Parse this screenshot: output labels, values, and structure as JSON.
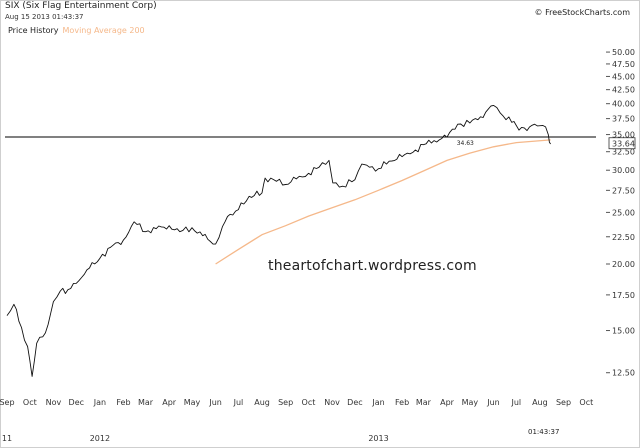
{
  "header": {
    "title": "SIX (Six Flag Entertainment Corp)",
    "timestamp": "Aug 15 2013 01:43:37",
    "copyright": "© FreeStockCharts.com",
    "bottom_time": "01:43:37"
  },
  "legend": {
    "price_label": "Price History",
    "ma_label": "Moving Average 200"
  },
  "watermark": "theartofchart.wordpress.com",
  "colors": {
    "price": "#111111",
    "moving_average": "#f5b88a",
    "horizontal_line": "#000000"
  },
  "chart_data": {
    "type": "line",
    "x_tick_labels": [
      "Sep",
      "Oct",
      "Nov",
      "Dec",
      "Jan",
      "Feb",
      "Mar",
      "Apr",
      "May",
      "Jun",
      "Jul",
      "Aug",
      "Sep",
      "Oct",
      "Nov",
      "Dec",
      "Jan",
      "Feb",
      "Mar",
      "Apr",
      "May",
      "Jun",
      "Jul",
      "Aug",
      "Sep",
      "Oct"
    ],
    "x_secondary_labels": [
      "11",
      "2012",
      "2013"
    ],
    "y_tick_labels": [
      "50.00",
      "47.50",
      "45.00",
      "42.50",
      "40.00",
      "37.50",
      "35.00",
      "32.50",
      "30.00",
      "27.50",
      "25.00",
      "22.50",
      "20.00",
      "17.50",
      "15.00",
      "12.50"
    ],
    "y_scale": "log",
    "ylim": [
      11.5,
      52
    ],
    "grid": false,
    "legend_placement": "top-left",
    "horizontal_line": {
      "value": 34.63,
      "label": "34.63"
    },
    "last_price_label": "33.64",
    "series": [
      {
        "name": "Price History",
        "points": [
          [
            "2011-09-01",
            16.0
          ],
          [
            "2011-09-10",
            16.8
          ],
          [
            "2011-09-20",
            15.2
          ],
          [
            "2011-09-28",
            14.0
          ],
          [
            "2011-10-04",
            12.3
          ],
          [
            "2011-10-10",
            14.2
          ],
          [
            "2011-10-18",
            14.6
          ],
          [
            "2011-10-25",
            15.4
          ],
          [
            "2011-11-01",
            17.0
          ],
          [
            "2011-11-10",
            17.8
          ],
          [
            "2011-11-20",
            17.9
          ],
          [
            "2011-12-01",
            18.4
          ],
          [
            "2011-12-15",
            19.5
          ],
          [
            "2012-01-01",
            20.5
          ],
          [
            "2012-01-15",
            21.5
          ],
          [
            "2012-02-01",
            22.2
          ],
          [
            "2012-02-15",
            24.0
          ],
          [
            "2012-03-01",
            23.0
          ],
          [
            "2012-03-15",
            23.3
          ],
          [
            "2012-04-01",
            23.6
          ],
          [
            "2012-04-15",
            23.0
          ],
          [
            "2012-05-01",
            23.4
          ],
          [
            "2012-05-15",
            22.6
          ],
          [
            "2012-06-01",
            21.8
          ],
          [
            "2012-06-10",
            23.5
          ],
          [
            "2012-06-20",
            24.8
          ],
          [
            "2012-07-01",
            25.3
          ],
          [
            "2012-07-15",
            26.8
          ],
          [
            "2012-08-01",
            27.2
          ],
          [
            "2012-08-05",
            29.0
          ],
          [
            "2012-08-20",
            28.6
          ],
          [
            "2012-09-01",
            28.2
          ],
          [
            "2012-09-15",
            28.9
          ],
          [
            "2012-10-01",
            29.6
          ],
          [
            "2012-10-15",
            30.4
          ],
          [
            "2012-10-28",
            31.3
          ],
          [
            "2012-11-02",
            28.4
          ],
          [
            "2012-11-15",
            28.0
          ],
          [
            "2012-12-01",
            28.8
          ],
          [
            "2012-12-10",
            30.8
          ],
          [
            "2012-12-20",
            30.4
          ],
          [
            "2013-01-01",
            30.2
          ],
          [
            "2013-01-15",
            31.2
          ],
          [
            "2013-02-01",
            31.8
          ],
          [
            "2013-02-15",
            32.4
          ],
          [
            "2013-03-01",
            33.5
          ],
          [
            "2013-03-15",
            34.1
          ],
          [
            "2013-04-01",
            34.6
          ],
          [
            "2013-04-15",
            36.6
          ],
          [
            "2013-05-01",
            36.8
          ],
          [
            "2013-05-15",
            37.8
          ],
          [
            "2013-06-01",
            39.7
          ],
          [
            "2013-06-10",
            38.4
          ],
          [
            "2013-06-25",
            36.9
          ],
          [
            "2013-07-01",
            36.4
          ],
          [
            "2013-07-15",
            35.6
          ],
          [
            "2013-07-25",
            36.6
          ],
          [
            "2013-08-05",
            36.4
          ],
          [
            "2013-08-12",
            35.0
          ],
          [
            "2013-08-15",
            33.6
          ]
        ]
      },
      {
        "name": "Moving Average 200",
        "points": [
          [
            "2012-06-01",
            20.0
          ],
          [
            "2012-07-01",
            21.3
          ],
          [
            "2012-08-01",
            22.7
          ],
          [
            "2012-09-01",
            23.6
          ],
          [
            "2012-10-01",
            24.6
          ],
          [
            "2012-11-01",
            25.5
          ],
          [
            "2012-12-01",
            26.4
          ],
          [
            "2013-01-01",
            27.5
          ],
          [
            "2013-02-01",
            28.7
          ],
          [
            "2013-03-01",
            29.9
          ],
          [
            "2013-04-01",
            31.3
          ],
          [
            "2013-05-01",
            32.3
          ],
          [
            "2013-06-01",
            33.2
          ],
          [
            "2013-07-01",
            33.8
          ],
          [
            "2013-08-15",
            34.2
          ]
        ]
      }
    ]
  }
}
